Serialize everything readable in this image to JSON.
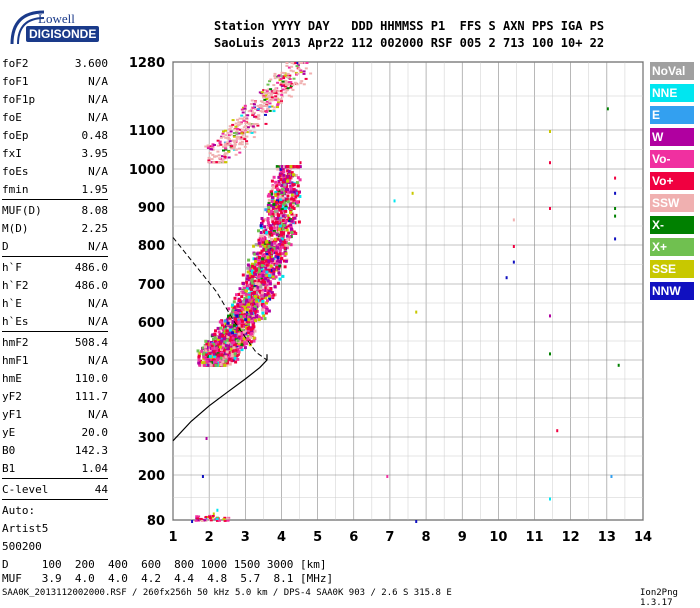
{
  "logo": {
    "line1": "Lowell",
    "line2": "DIGISONDE"
  },
  "header": {
    "line1": "Station YYYY DAY   DDD HHMMSS P1  FFS S AXN PPS IGA PS",
    "line2": "SaoLuis 2013 Apr22 112 002000 RSF 005 2 713 100 10+ 22"
  },
  "params": {
    "group1": [
      {
        "k": "foF2",
        "v": "3.600"
      },
      {
        "k": "foF1",
        "v": "N/A"
      },
      {
        "k": "foF1p",
        "v": "N/A"
      },
      {
        "k": "foE",
        "v": "N/A"
      },
      {
        "k": "foEp",
        "v": "0.48"
      },
      {
        "k": "fxI",
        "v": "3.95"
      },
      {
        "k": "foEs",
        "v": "N/A"
      },
      {
        "k": "fmin",
        "v": "1.95"
      }
    ],
    "group2": [
      {
        "k": "MUF(D)",
        "v": "8.08"
      },
      {
        "k": "M(D)",
        "v": "2.25"
      },
      {
        "k": "D",
        "v": "N/A"
      }
    ],
    "group3": [
      {
        "k": "h`F",
        "v": "486.0"
      },
      {
        "k": "h`F2",
        "v": "486.0"
      },
      {
        "k": "h`E",
        "v": "N/A"
      },
      {
        "k": "h`Es",
        "v": "N/A"
      }
    ],
    "group4": [
      {
        "k": "hmF2",
        "v": "508.4"
      },
      {
        "k": "hmF1",
        "v": "N/A"
      },
      {
        "k": "hmE",
        "v": "110.0"
      },
      {
        "k": "yF2",
        "v": "111.7"
      },
      {
        "k": "yF1",
        "v": "N/A"
      },
      {
        "k": "yE",
        "v": "20.0"
      },
      {
        "k": "B0",
        "v": "142.3"
      },
      {
        "k": "B1",
        "v": "1.04"
      }
    ],
    "group5": [
      {
        "k": "C-level",
        "v": "44"
      }
    ],
    "group6": [
      "Auto:",
      "Artist5",
      "500200"
    ]
  },
  "legend": [
    {
      "label": "NoVal",
      "color": "#a0a0a0"
    },
    {
      "label": "NNE",
      "color": "#00e6f0"
    },
    {
      "label": "E",
      "color": "#33a0f0"
    },
    {
      "label": "W",
      "color": "#b000a0"
    },
    {
      "label": "Vo-",
      "color": "#f030a0"
    },
    {
      "label": "Vo+",
      "color": "#f00040"
    },
    {
      "label": "SSW",
      "color": "#f0b0b0"
    },
    {
      "label": "X-",
      "color": "#008000"
    },
    {
      "label": "X+",
      "color": "#70c050"
    },
    {
      "label": "SSE",
      "color": "#c8c800"
    },
    {
      "label": "NNW",
      "color": "#1010c0"
    }
  ],
  "bottom": {
    "line1": "D     100  200  400  600  800 1000 1500 3000 [km]",
    "line2": "MUF   3.9  4.0  4.0  4.2  4.4  4.8  5.7  8.1 [MHz]"
  },
  "footer": "SAA0K_2013112002000.RSF / 260fx256h 50 kHz 5.0 km / DPS-4 SAA0K 903 / 2.6 S 315.8 E",
  "version": "Ion2Png 1.3.17",
  "chart_data": {
    "type": "scatter",
    "xlim": [
      1,
      14
    ],
    "ylim": [
      80,
      1280
    ],
    "x_ticks": [
      1,
      2,
      3,
      4,
      5,
      6,
      7,
      8,
      9,
      10,
      11,
      12,
      13,
      14
    ],
    "y_ticks": [
      80,
      200,
      300,
      400,
      500,
      600,
      700,
      800,
      900,
      1000,
      1100,
      1280
    ],
    "y_tick_labels": [
      "80",
      "200",
      "300",
      "400",
      "500",
      "600",
      "700",
      "800",
      "900",
      "1000",
      "1100",
      "1280"
    ],
    "grid": true,
    "f2_trace": {
      "x_start": 1.9,
      "x_end": 4.3,
      "h_start": 510,
      "h_end": 1000
    },
    "second_hop": {
      "x_start": 2.0,
      "x_end": 4.6,
      "h_start": 1020,
      "h_end": 1280
    },
    "profile_solid": [
      [
        1,
        290
      ],
      [
        1.5,
        340
      ],
      [
        2,
        380
      ],
      [
        2.5,
        415
      ],
      [
        3,
        450
      ],
      [
        3.4,
        480
      ],
      [
        3.6,
        500
      ],
      [
        3.6,
        515
      ]
    ],
    "profile_dashed": [
      [
        1,
        820
      ],
      [
        1.6,
        750
      ],
      [
        2.2,
        680
      ],
      [
        2.7,
        600
      ],
      [
        3.0,
        560
      ],
      [
        3.3,
        520
      ],
      [
        3.6,
        500
      ]
    ]
  }
}
